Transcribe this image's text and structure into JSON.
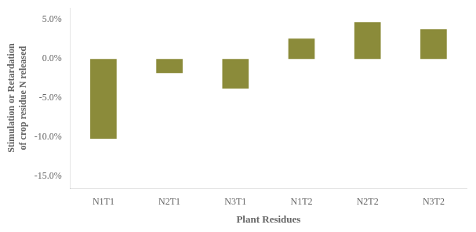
{
  "chart_data": {
    "type": "bar",
    "categories": [
      "N1T1",
      "N2T1",
      "N3T1",
      "N1T2",
      "N2T2",
      "N3T2"
    ],
    "values": [
      -10.2,
      -1.8,
      -3.8,
      2.6,
      4.7,
      3.8
    ],
    "color": "#8b8b3a",
    "xlabel": "Plant Residues",
    "ylabel": "Stimulation or Retardation\nof crop residue N released",
    "ylim": [
      -16.5,
      6.5
    ],
    "yticks": [
      {
        "value": -15.0,
        "label": "-15.0%"
      },
      {
        "value": -10.0,
        "label": "-10.0%"
      },
      {
        "value": -5.0,
        "label": "-5.0%"
      },
      {
        "value": 0.0,
        "label": "0.0%"
      },
      {
        "value": 5.0,
        "label": "5.0%"
      }
    ],
    "grid": false
  }
}
